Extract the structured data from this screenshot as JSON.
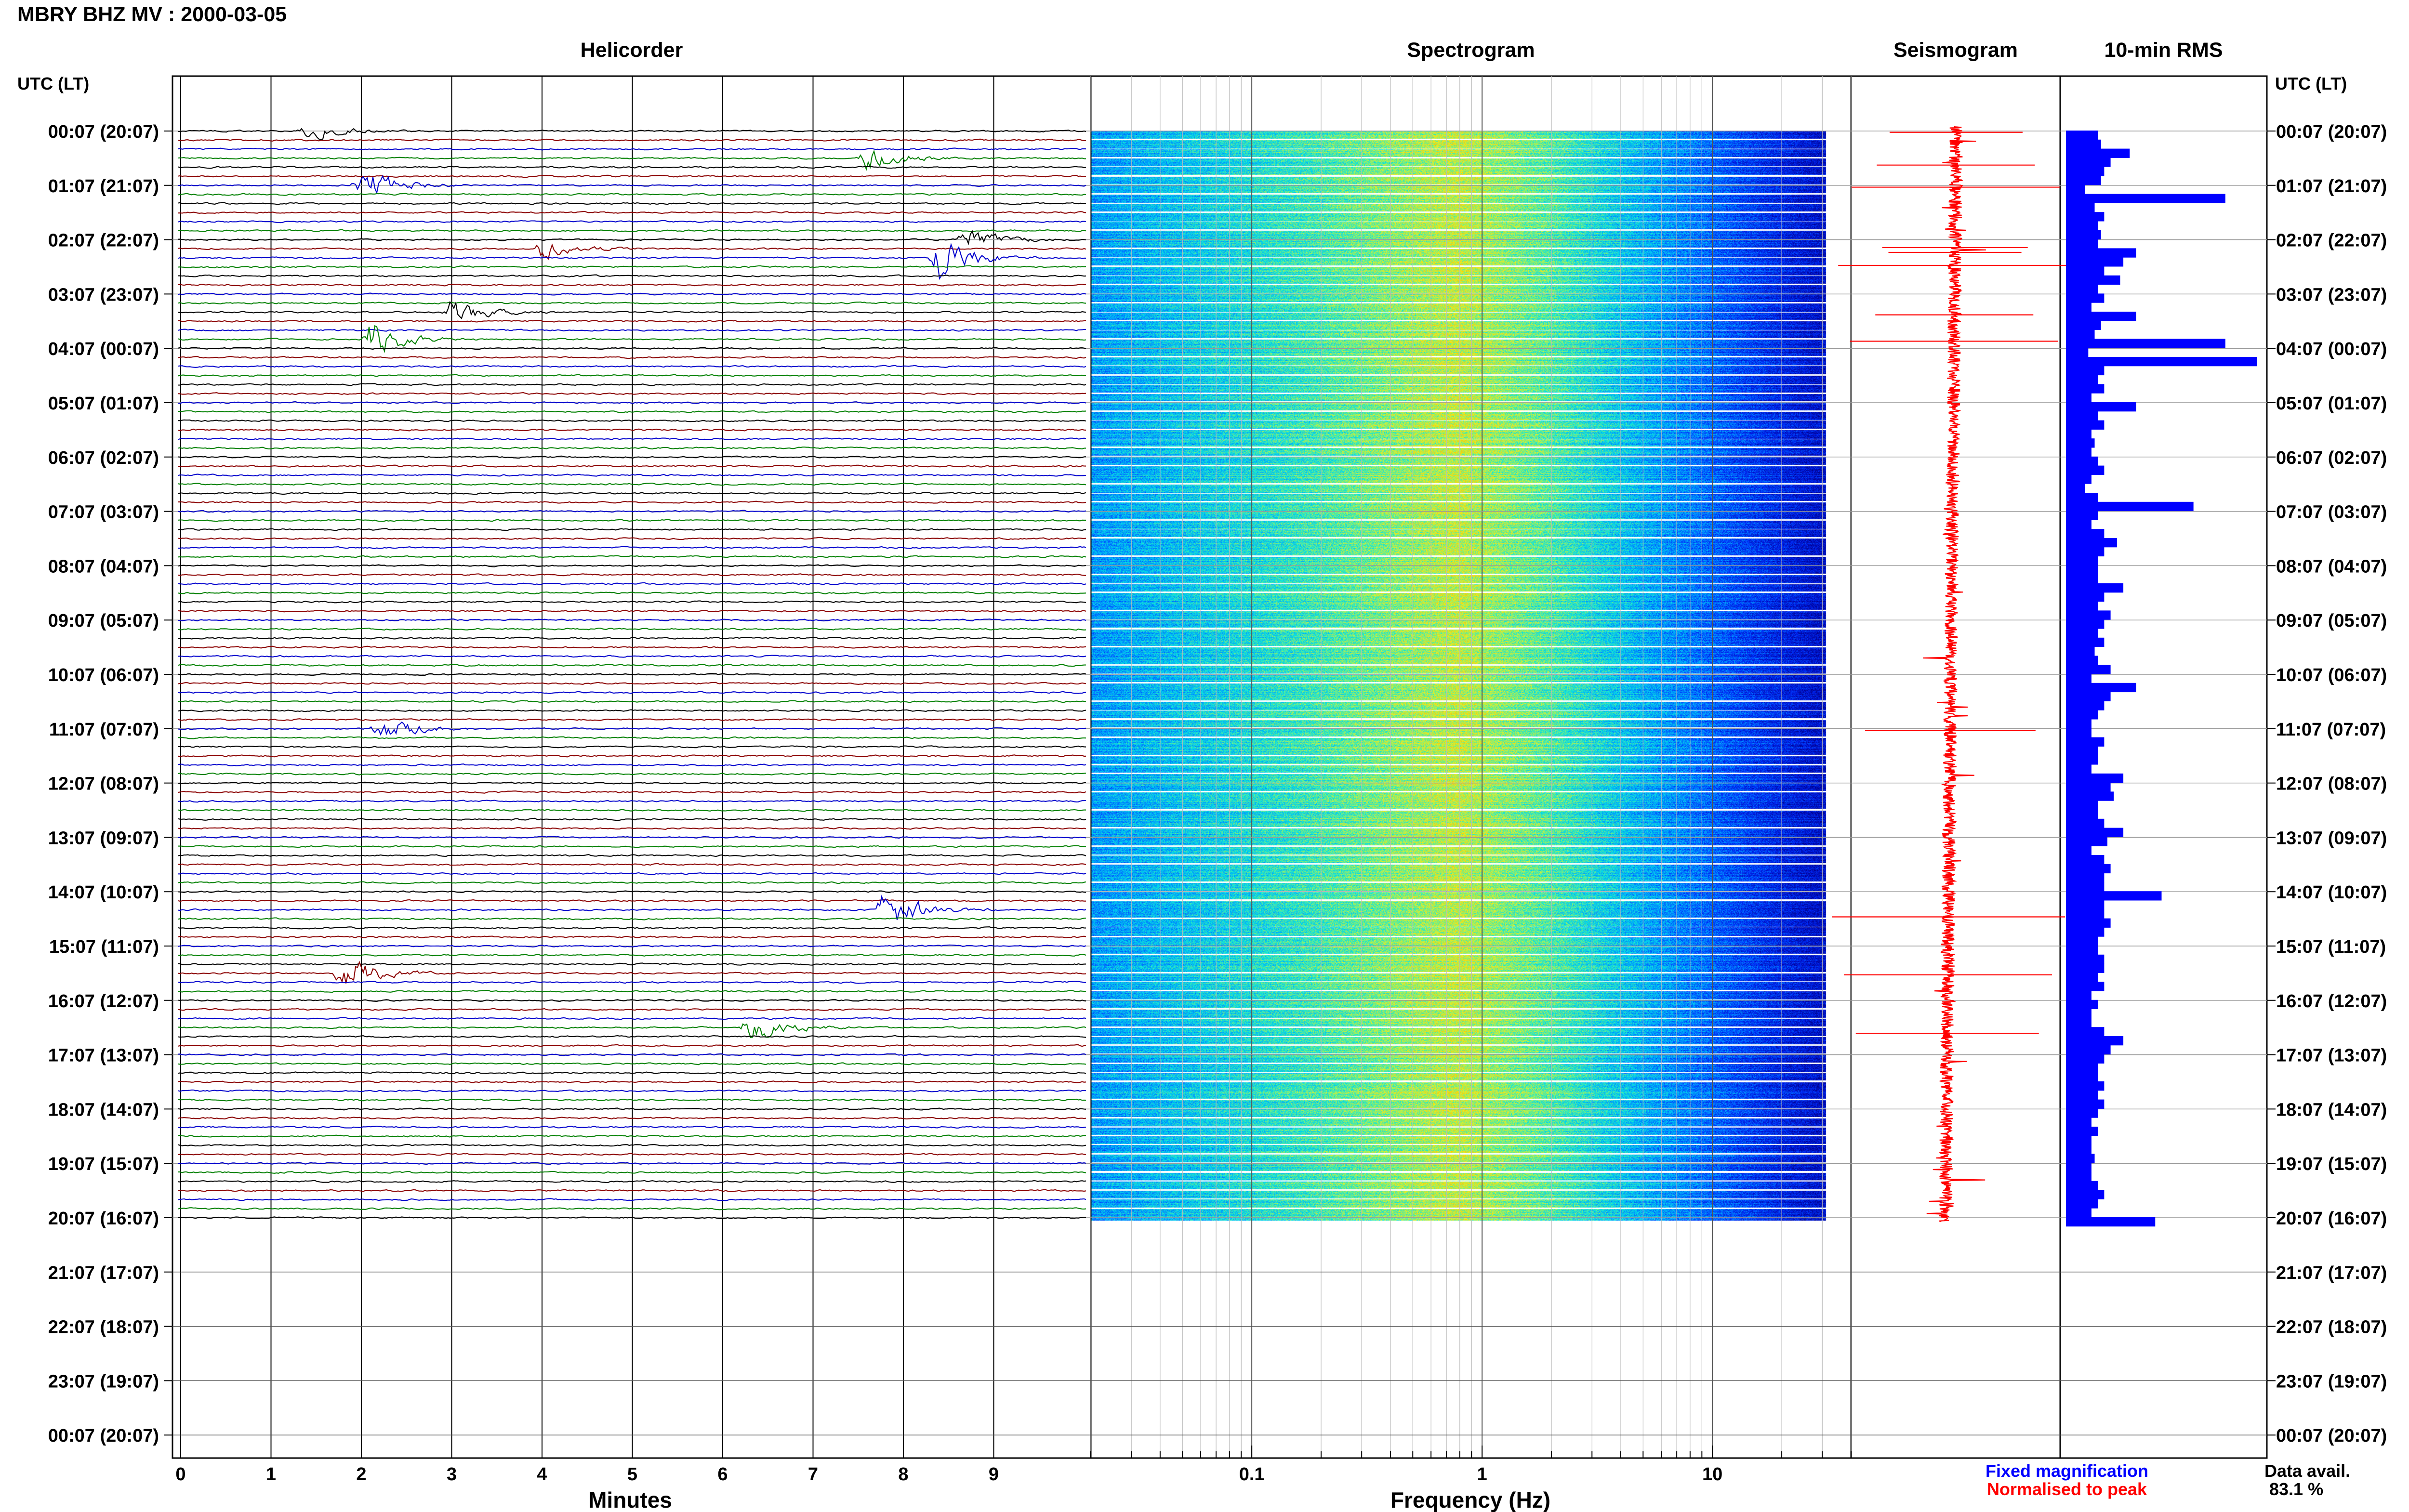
{
  "header": {
    "title": "MBRY BHZ MV : 2000-03-05"
  },
  "axis_caption": "UTC (LT)",
  "panels": {
    "helicorder": {
      "title": "Helicorder",
      "xlabel": "Minutes",
      "ticks": [
        "0",
        "1",
        "2",
        "3",
        "4",
        "5",
        "6",
        "7",
        "8",
        "9"
      ]
    },
    "spectrogram": {
      "title": "Spectrogram",
      "xlabel": "Frequency (Hz)",
      "ticks": [
        "0.1",
        "1",
        "10"
      ]
    },
    "seismogram": {
      "title": "Seismogram"
    },
    "rms": {
      "title": "10-min RMS"
    }
  },
  "time_labels": [
    "00:07 (20:07)",
    "01:07 (21:07)",
    "02:07 (22:07)",
    "03:07 (23:07)",
    "04:07 (00:07)",
    "05:07 (01:07)",
    "06:07 (02:07)",
    "07:07 (03:07)",
    "08:07 (04:07)",
    "09:07 (05:07)",
    "10:07 (06:07)",
    "11:07 (07:07)",
    "12:07 (08:07)",
    "13:07 (09:07)",
    "14:07 (10:07)",
    "15:07 (11:07)",
    "16:07 (12:07)",
    "17:07 (13:07)",
    "18:07 (14:07)",
    "19:07 (15:07)",
    "20:07 (16:07)",
    "21:07 (17:07)",
    "22:07 (18:07)",
    "23:07 (19:07)",
    "00:07 (20:07)"
  ],
  "legend": {
    "fixed": "Fixed magnification",
    "normalised": "Normalised to peak"
  },
  "availability": {
    "label": "Data avail.",
    "value": "83.1 %"
  },
  "colors": {
    "trace_cycle": [
      "#000000",
      "#8b0000",
      "#0000cd",
      "#008000"
    ],
    "rms_bar": "#0000ff",
    "seismogram": "#ff0000",
    "legend_fixed": "#0000ff",
    "legend_norm": "#ff0000"
  },
  "chart_data": {
    "type": "helicorder",
    "station": "MBRY BHZ MV",
    "date": "2000-03-05",
    "rows_per_hour": 6,
    "rows_with_data": 121,
    "rms_10min": [
      0.5,
      0.55,
      1.0,
      0.7,
      0.6,
      0.55,
      0.3,
      2.5,
      0.45,
      0.6,
      0.5,
      0.55,
      0.5,
      1.1,
      0.9,
      0.6,
      0.85,
      0.5,
      0.6,
      0.4,
      1.1,
      0.55,
      0.45,
      2.5,
      0.35,
      3.0,
      0.6,
      0.5,
      0.6,
      0.4,
      1.1,
      0.5,
      0.6,
      0.4,
      0.45,
      0.4,
      0.5,
      0.6,
      0.4,
      0.3,
      0.5,
      2.0,
      0.5,
      0.4,
      0.6,
      0.8,
      0.6,
      0.5,
      0.5,
      0.5,
      0.9,
      0.6,
      0.5,
      0.7,
      0.6,
      0.5,
      0.6,
      0.45,
      0.5,
      0.7,
      0.4,
      1.1,
      0.7,
      0.6,
      0.5,
      0.4,
      0.4,
      0.6,
      0.5,
      0.5,
      0.4,
      0.9,
      0.7,
      0.75,
      0.5,
      0.5,
      0.6,
      0.9,
      0.65,
      0.4,
      0.6,
      0.7,
      0.6,
      0.6,
      1.5,
      0.6,
      0.6,
      0.7,
      0.6,
      0.5,
      0.5,
      0.6,
      0.6,
      0.5,
      0.6,
      0.4,
      0.5,
      0.4,
      0.4,
      0.6,
      0.9,
      0.7,
      0.6,
      0.5,
      0.5,
      0.6,
      0.5,
      0.6,
      0.5,
      0.4,
      0.5,
      0.4,
      0.4,
      0.45,
      0.4,
      0.4,
      0.5,
      0.6,
      0.5,
      0.4,
      1.4
    ],
    "events": [
      {
        "minute": 1.4,
        "row": 0,
        "amp": 3.0
      },
      {
        "minute": 7.6,
        "row": 3,
        "amp": 4.0
      },
      {
        "minute": 2.0,
        "row": 6,
        "amp": 6.0
      },
      {
        "minute": 8.7,
        "row": 12,
        "amp": 3.5
      },
      {
        "minute": 4.0,
        "row": 13,
        "amp": 3.0
      },
      {
        "minute": 8.4,
        "row": 14,
        "amp": 7.0
      },
      {
        "minute": 3.0,
        "row": 20,
        "amp": 4.0
      },
      {
        "minute": 2.1,
        "row": 23,
        "amp": 6.0
      },
      {
        "minute": 2.2,
        "row": 66,
        "amp": 4.5
      },
      {
        "minute": 7.8,
        "row": 86,
        "amp": 7.0
      },
      {
        "minute": 1.8,
        "row": 93,
        "amp": 6.0
      },
      {
        "minute": 6.3,
        "row": 99,
        "amp": 5.0
      }
    ],
    "xlim_minutes": [
      0,
      10
    ],
    "spectrogram_xlim_hz": [
      0.02,
      40
    ]
  }
}
